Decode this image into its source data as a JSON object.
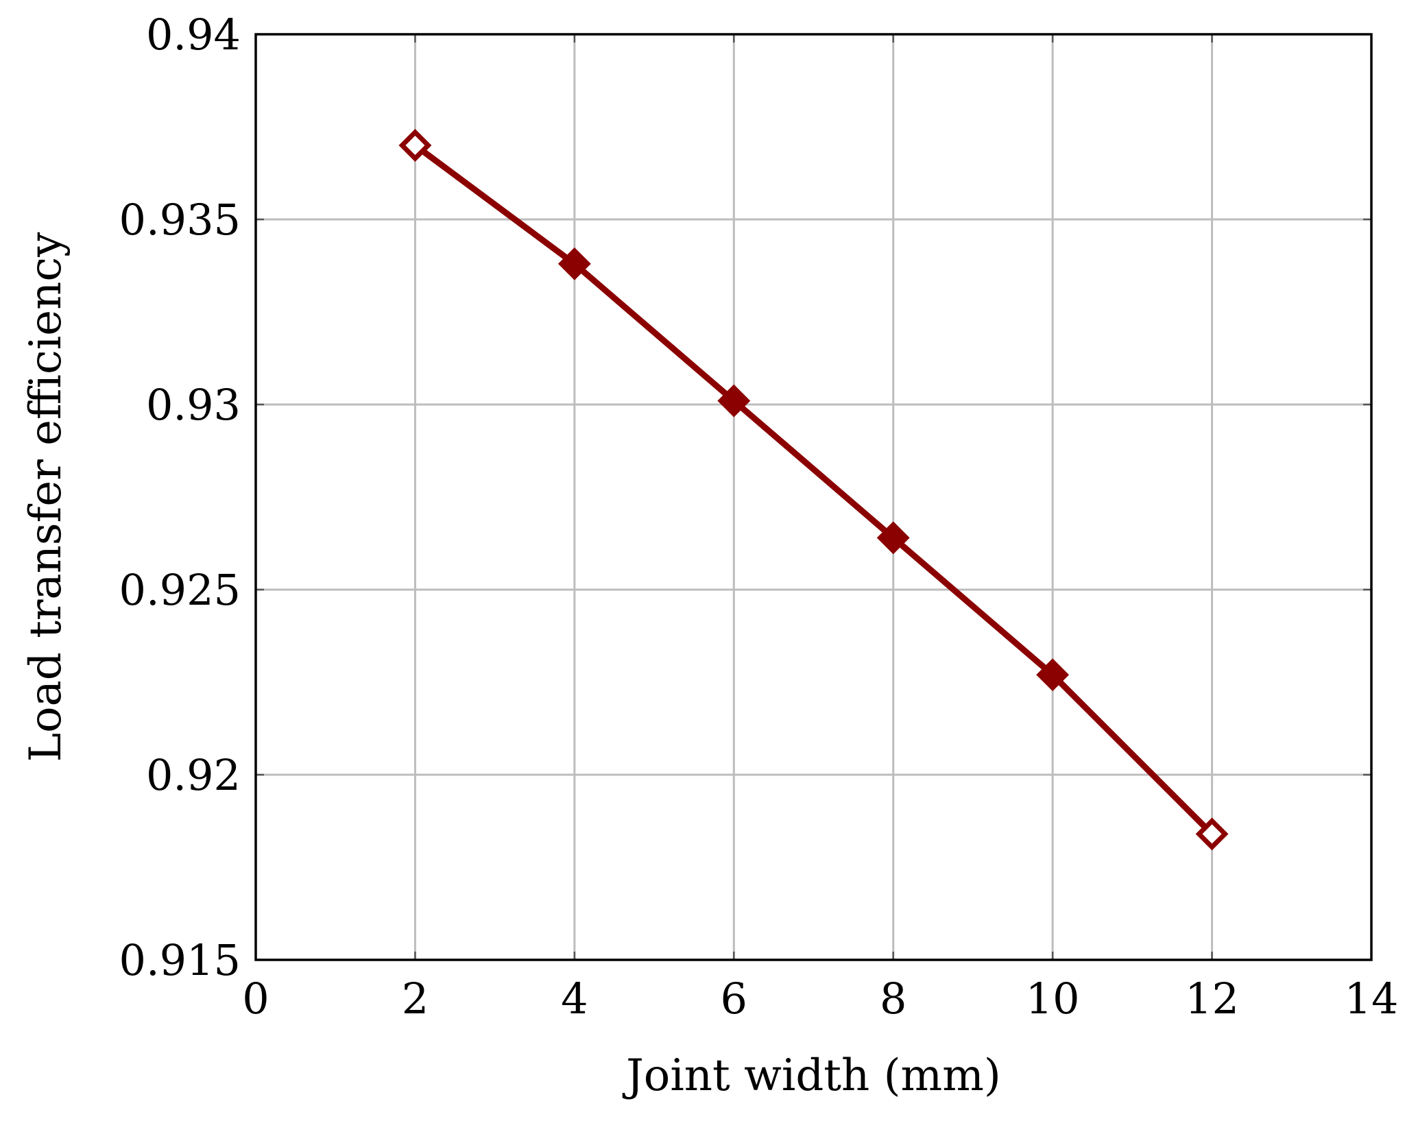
{
  "chart_data": {
    "type": "line",
    "title": "",
    "xlabel": "Joint width (mm)",
    "ylabel": "Load transfer efficiency",
    "xlim": [
      0,
      14
    ],
    "ylim": [
      0.915,
      0.94
    ],
    "xticks": [
      0,
      2,
      4,
      6,
      8,
      10,
      12,
      14
    ],
    "xtick_labels": [
      "0",
      "2",
      "4",
      "6",
      "8",
      "10",
      "12",
      "14"
    ],
    "yticks": [
      0.915,
      0.92,
      0.925,
      0.93,
      0.935,
      0.94
    ],
    "ytick_labels": [
      "0.915",
      "0.92",
      "0.925",
      "0.93",
      "0.935",
      "0.94"
    ],
    "grid": true,
    "legend": "none",
    "series": [
      {
        "color": "#8b0000",
        "marker": "diamond",
        "x": [
          2,
          4,
          6,
          8,
          10,
          12
        ],
        "y": [
          0.937,
          0.9338,
          0.9301,
          0.9264,
          0.9227,
          0.9184
        ]
      }
    ]
  }
}
